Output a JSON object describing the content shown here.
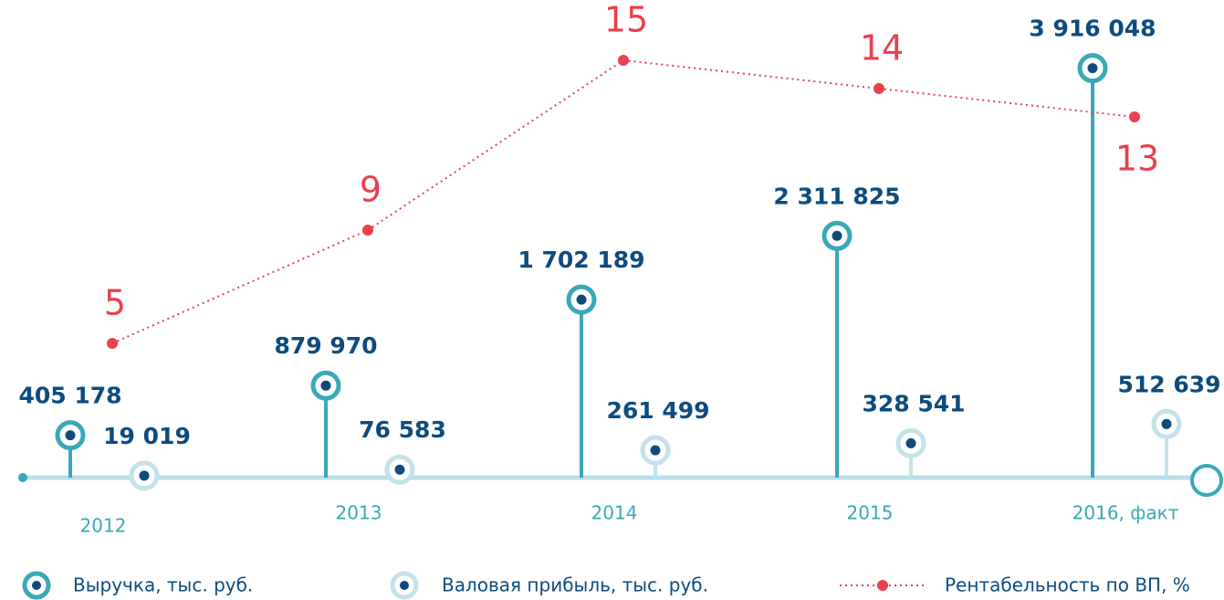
{
  "chart_data": {
    "type": "lollipop",
    "categories": [
      "2012",
      "2013",
      "2014",
      "2015",
      "2016, факт"
    ],
    "ylim": [
      0,
      4000000
    ],
    "y2lim": [
      0,
      17
    ],
    "series": [
      {
        "name": "Выручка, тыс. руб.",
        "color": "#3aa8b8",
        "values": [
          405178,
          879970,
          1702189,
          2311825,
          3916048
        ],
        "value_labels": [
          "405 178",
          "879 970",
          "1 702 189",
          "2 311 825",
          "3 916 048"
        ]
      },
      {
        "name": "Валовая прибыль, тыс. руб.",
        "color": "#c5e2eb",
        "values": [
          19019,
          76583,
          261499,
          328541,
          512639
        ],
        "value_labels": [
          "19 019",
          "76 583",
          "261 499",
          "328 541",
          "512 639"
        ]
      },
      {
        "name": "Рентабельность по ВП, %",
        "color": "#e8414f",
        "axis": "y2",
        "values": [
          5,
          9,
          15,
          14,
          13
        ]
      }
    ]
  }
}
